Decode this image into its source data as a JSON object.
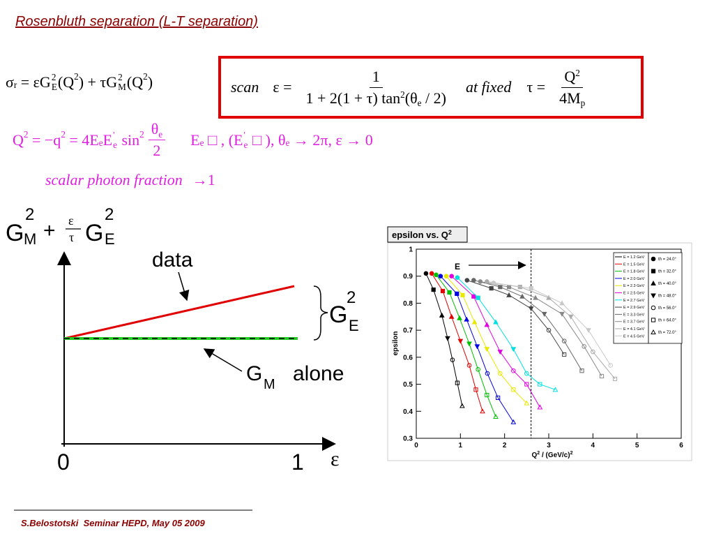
{
  "title": "Rosenbluth separation (L-T separation)",
  "sigma_formula": [
    {
      "t": "σ"
    },
    {
      "sub": "r"
    },
    {
      "t": " = εG"
    },
    {
      "sup": "2",
      "sub": "E"
    },
    {
      "t": "(Q"
    },
    {
      "sup": "2"
    },
    {
      "t": ") + τG"
    },
    {
      "sup": "2",
      "sub": "M"
    },
    {
      "t": "(Q"
    },
    {
      "sup": "2"
    },
    {
      "t": ")"
    }
  ],
  "scan_box": {
    "label": "scan",
    "lhs": "ε =",
    "numerator": [
      {
        "t": "1"
      }
    ],
    "denominator": [
      {
        "t": "1 + 2(1 + τ) tan"
      },
      {
        "sup": "2"
      },
      {
        "t": "(θ"
      },
      {
        "sub": "e"
      },
      {
        "t": " / 2)"
      }
    ],
    "condition": "at fixed",
    "tau_lhs": "τ =",
    "tau_numerator": [
      {
        "t": "Q"
      },
      {
        "sup": "2"
      }
    ],
    "tau_denominator": [
      {
        "t": "4M"
      },
      {
        "sub": "p"
      }
    ]
  },
  "q2_formula": {
    "left": [
      {
        "t": "Q"
      },
      {
        "sup": "2"
      },
      {
        "t": " = −q"
      },
      {
        "sup": "2"
      },
      {
        "t": " = 4E"
      },
      {
        "sub": "e"
      },
      {
        "t": "E"
      },
      {
        "sup": "'",
        "sub": "e"
      },
      {
        "t": " sin"
      },
      {
        "sup": "2"
      }
    ],
    "frac_num": [
      {
        "t": "θ"
      },
      {
        "sub": "e"
      }
    ],
    "frac_den": [
      {
        "t": "2"
      }
    ],
    "limits": [
      {
        "t": "E"
      },
      {
        "sub": "e"
      },
      {
        "t": " □ , (E"
      },
      {
        "sup": "'",
        "sub": "e"
      },
      {
        "t": " □ ), θ"
      },
      {
        "sub": "e"
      },
      {
        "t": " → 2π, ε → 0"
      }
    ]
  },
  "scalar_note": {
    "text": "scalar photon fraction",
    "arrow": "→1"
  },
  "schematic": {
    "y_label": {
      "g1": "G",
      "g1_sup": "2",
      "g1_sub": "M",
      "plus": "+",
      "frac_num": "ε",
      "frac_den": "τ",
      "g2": "G",
      "g2_sup": "2",
      "g2_sub": "E"
    },
    "data_label": "data",
    "gap_label": {
      "g": "G",
      "sup": "2",
      "sub": "E"
    },
    "gm_label": {
      "g": "G",
      "sub": "M",
      "text": "alone"
    },
    "x_ticks": [
      0,
      1
    ],
    "x_label": "ε"
  },
  "plot": {
    "title": "epsilon vs. Q",
    "title_sup": "2",
    "x_label": {
      "main": "Q",
      "sup": "2",
      "rest": " / (GeV/c)",
      "sup2": "2"
    },
    "y_label": "epsilon",
    "xlim": [
      0,
      6
    ],
    "ylim": [
      0.3,
      1
    ],
    "xticks": [
      0,
      1,
      2,
      3,
      4,
      5,
      6
    ],
    "yticks": [
      0.3,
      0.4,
      0.5,
      0.6,
      0.7,
      0.8,
      0.9,
      1
    ],
    "annotation": "E",
    "marker_line_x": 2.6,
    "series": [
      {
        "name": "E = 1.2 GeV",
        "color": "#000000",
        "x": [
          0.22,
          0.39,
          0.58,
          0.71,
          0.82,
          0.93,
          1.04
        ],
        "values": [
          0.91,
          0.85,
          0.755,
          0.67,
          0.59,
          0.505,
          0.42
        ]
      },
      {
        "name": "E = 1.5 GeV",
        "color": "#e00000",
        "x": [
          0.35,
          0.6,
          0.8,
          1.0,
          1.2,
          1.35,
          1.5
        ],
        "values": [
          0.91,
          0.845,
          0.75,
          0.66,
          0.57,
          0.48,
          0.4
        ]
      },
      {
        "name": "E = 1.8 GeV",
        "color": "#00c000",
        "x": [
          0.45,
          0.75,
          0.98,
          1.2,
          1.4,
          1.6,
          1.8
        ],
        "values": [
          0.905,
          0.84,
          0.745,
          0.65,
          0.555,
          0.46,
          0.38
        ]
      },
      {
        "name": "E = 2.0 GeV",
        "color": "#0000e0",
        "x": [
          0.55,
          0.92,
          1.14,
          1.38,
          1.61,
          1.85,
          2.2
        ],
        "values": [
          0.9,
          0.835,
          0.74,
          0.64,
          0.54,
          0.45,
          0.36
        ]
      },
      {
        "name": "E = 2.3 GeV",
        "color": "#e8e800",
        "x": [
          0.68,
          1.05,
          1.32,
          1.6,
          1.9,
          2.2,
          2.5
        ],
        "values": [
          0.9,
          0.83,
          0.73,
          0.63,
          0.54,
          0.48,
          0.43
        ]
      },
      {
        "name": "E = 2.5 GeV",
        "color": "#e000e0",
        "x": [
          0.8,
          1.3,
          1.6,
          1.9,
          2.2,
          2.5,
          2.8
        ],
        "values": [
          0.9,
          0.825,
          0.72,
          0.62,
          0.55,
          0.5,
          0.415
        ]
      },
      {
        "name": "E = 2.7 GeV",
        "color": "#00e0e0",
        "x": [
          0.93,
          1.4,
          1.8,
          2.2,
          2.5,
          2.8,
          3.15
        ],
        "values": [
          0.895,
          0.82,
          0.73,
          0.63,
          0.54,
          0.5,
          0.48
        ]
      },
      {
        "name": "E = 2.9 GeV",
        "color": "#444444",
        "x": [
          1.15,
          1.7,
          2.1,
          2.6,
          3.0,
          3.35
        ],
        "values": [
          0.885,
          0.855,
          0.83,
          0.78,
          0.7,
          0.61
        ]
      },
      {
        "name": "E = 3.3 GeV",
        "color": "#666666",
        "x": [
          1.3,
          1.9,
          2.4,
          2.9,
          3.35,
          3.75
        ],
        "values": [
          0.885,
          0.86,
          0.825,
          0.76,
          0.66,
          0.55
        ]
      },
      {
        "name": "E = 3.7 GeV",
        "color": "#888888",
        "x": [
          1.45,
          2.1,
          2.7,
          3.3,
          3.8,
          4.2
        ],
        "values": [
          0.88,
          0.86,
          0.82,
          0.76,
          0.64,
          0.53
        ]
      },
      {
        "name": "E = 4.1 GeV",
        "color": "#aaaaaa",
        "x": [
          1.6,
          2.35,
          3.0,
          3.5,
          4.0,
          4.5
        ],
        "values": [
          0.88,
          0.86,
          0.82,
          0.75,
          0.62,
          0.52
        ]
      },
      {
        "name": "E = 4.5 GeV",
        "color": "#c8c8c8",
        "x": [
          1.75,
          2.6,
          3.3,
          3.9,
          4.4
        ],
        "values": [
          0.875,
          0.855,
          0.8,
          0.7,
          0.57
        ]
      }
    ],
    "theta_legend": [
      {
        "name": "th = 24.0°",
        "marker": "circle-filled"
      },
      {
        "name": "th = 32.0°",
        "marker": "square-filled"
      },
      {
        "name": "th = 40.0°",
        "marker": "triangle-up-filled"
      },
      {
        "name": "th = 48.0°",
        "marker": "triangle-down-filled"
      },
      {
        "name": "th = 56.0°",
        "marker": "circle-open"
      },
      {
        "name": "th = 64.0°",
        "marker": "square-open"
      },
      {
        "name": "th = 72.0°",
        "marker": "triangle-up-open"
      }
    ]
  },
  "footer": "S.Belostotski  Seminar HEPD, May 05 2009"
}
